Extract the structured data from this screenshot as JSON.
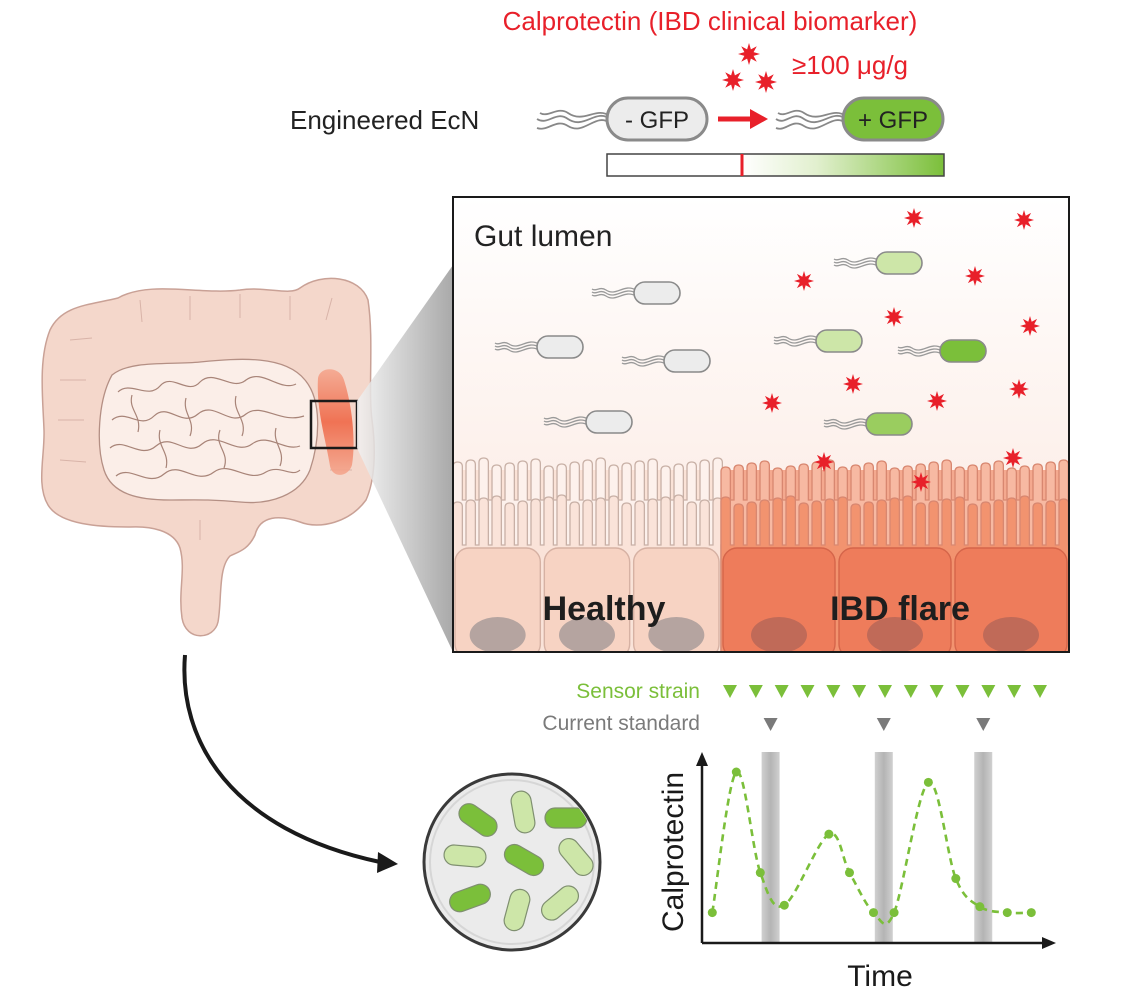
{
  "header": {
    "title": "Calprotectin (IBD clinical biomarker)",
    "threshold": "≥100 μg/g",
    "strain_label": "Engineered EcN",
    "off_label": "- GFP",
    "on_label": "+ GFP"
  },
  "panel": {
    "region_label": "Gut lumen",
    "healthy_label": "Healthy",
    "flare_label": "IBD flare"
  },
  "sampling": {
    "sensor_label": "Sensor strain",
    "standard_label": "Current standard",
    "sensor_count": 13,
    "standard_count": 3
  },
  "colors": {
    "marker_red": "#e8202a",
    "gfp_green": "#7bbf3a",
    "light_green": "#cde6a8",
    "healthy_tissue": "#f6cbb8",
    "flare_tissue": "#ef7d5c",
    "gray_marker": "#7a7a7a"
  },
  "chart_data": {
    "type": "line",
    "xlabel": "Time",
    "ylabel": "Calprotectin",
    "series": [
      {
        "values": [
          {
            "x": 0.3,
            "y": 0.05
          },
          {
            "x": 1.0,
            "y": 1.0
          },
          {
            "x": 1.7,
            "y": 0.32
          },
          {
            "x": 2.4,
            "y": 0.1
          },
          {
            "x": 3.7,
            "y": 0.58
          },
          {
            "x": 4.3,
            "y": 0.32
          },
          {
            "x": 5.0,
            "y": 0.05
          },
          {
            "x": 5.6,
            "y": 0.05
          },
          {
            "x": 6.6,
            "y": 0.93
          },
          {
            "x": 7.4,
            "y": 0.28
          },
          {
            "x": 8.1,
            "y": 0.09
          },
          {
            "x": 8.9,
            "y": 0.05
          },
          {
            "x": 9.6,
            "y": 0.05
          }
        ]
      }
    ],
    "standard_sampling_times": [
      2.0,
      5.3,
      8.2
    ]
  }
}
